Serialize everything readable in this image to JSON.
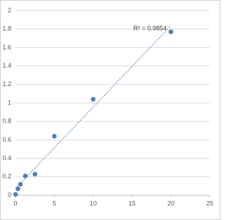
{
  "chart_data": {
    "type": "scatter",
    "x": [
      0,
      0.3125,
      0.625,
      1.25,
      2.5,
      5,
      10,
      20
    ],
    "series": [
      {
        "color": "#4f81bd",
        "values": [
          0.01,
          0.07,
          0.12,
          0.21,
          0.23,
          0.64,
          1.04,
          1.77
        ]
      }
    ],
    "xlim": [
      0,
      25
    ],
    "xticks": [
      0,
      5,
      10,
      15,
      20,
      25
    ],
    "ylim": [
      0,
      2
    ],
    "yticks": [
      0,
      0.2,
      0.4,
      0.6,
      0.8,
      1,
      1.2,
      1.4,
      1.6,
      1.8,
      2
    ],
    "grid": true,
    "trendline": "linear",
    "annotation": "R² = 0.9854"
  }
}
